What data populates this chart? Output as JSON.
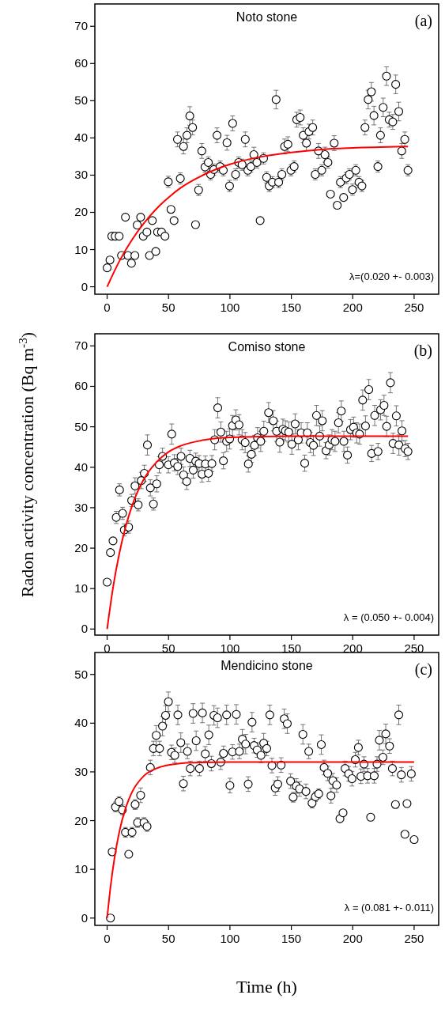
{
  "chart_data": [
    {
      "type": "scatter",
      "title": "Noto stone",
      "annotations": [
        "(a)",
        "λ=(0.020 +- 0.003)"
      ],
      "xlim": [
        -10,
        270
      ],
      "ylim": [
        -2,
        76
      ],
      "xticks": [
        0,
        50,
        100,
        150,
        200,
        250
      ],
      "yticks": [
        0,
        10,
        20,
        30,
        40,
        50,
        60,
        70
      ],
      "series": [
        {
          "marker": "circle",
          "color": "#000000",
          "x": [
            0,
            2.3,
            3.8,
            6.6,
            9.8,
            11.7,
            14.9,
            17,
            19.8,
            22.6,
            24.5,
            27.3,
            29.4,
            32.4,
            34.5,
            36.8,
            39.6,
            41.1,
            44.3,
            47.1,
            49.8,
            52,
            54.5,
            57.3,
            59.6,
            62.2,
            65,
            67.3,
            69.6,
            72,
            74.5,
            77.1,
            79.7,
            82.4,
            84.3,
            86.9,
            89.5,
            92,
            94.6,
            97.6,
            99.7,
            102.2,
            104.6,
            107.1,
            109.9,
            112.5,
            114.6,
            117.1,
            119.5,
            122,
            124.6,
            127.4,
            129.9,
            132,
            134.6,
            137.6,
            139.7,
            142.3,
            144.5,
            147.2,
            149.7,
            152.3,
            154.4,
            157.2,
            159.7,
            162.3,
            164.4,
            167.4,
            169.5,
            172.1,
            174.8,
            177.4,
            179.8,
            181.9,
            184.9,
            187.4,
            190,
            192.6,
            194.7,
            197.3,
            199.8,
            202.5,
            205.1,
            207.5,
            210,
            212.6,
            215.2,
            217.3,
            220.5,
            222.6,
            224.8,
            227.5,
            229.7,
            232.6,
            235,
            237.5,
            239.9,
            242.4,
            245
          ],
          "values": [
            5.1,
            7.2,
            13.6,
            13.6,
            13.6,
            8.4,
            18.7,
            8.4,
            6.3,
            8.4,
            16.6,
            18.7,
            13.6,
            14.7,
            8.4,
            17.8,
            9.5,
            14.7,
            14.7,
            13.6,
            28.2,
            20.8,
            17.8,
            39.6,
            29.1,
            37.7,
            40.7,
            45.9,
            42.8,
            16.7,
            26,
            36.5,
            32.2,
            33.4,
            30.2,
            31.5,
            40.7,
            32.3,
            31.3,
            38.7,
            27.1,
            43.9,
            30.2,
            33.4,
            32.8,
            39.6,
            31.3,
            32.3,
            35.5,
            33.4,
            17.8,
            34.5,
            29.4,
            27.1,
            28.1,
            50.3,
            28.1,
            30.2,
            37.7,
            38.3,
            31.3,
            32.3,
            44.9,
            45.5,
            40.7,
            38.6,
            41.7,
            42.8,
            30.2,
            36.5,
            31.3,
            35.5,
            33.4,
            24.9,
            38.6,
            21.9,
            28.1,
            24,
            29.2,
            30.2,
            26.1,
            31.3,
            28.1,
            27.1,
            42.8,
            50.3,
            52.4,
            46,
            32.3,
            40.7,
            48.2,
            56.6,
            44.9,
            44.3,
            54.4,
            47.1,
            36.5,
            39.6,
            31.3
          ],
          "errors": [
            null,
            null,
            null,
            null,
            null,
            null,
            null,
            null,
            null,
            null,
            null,
            null,
            null,
            null,
            null,
            null,
            null,
            null,
            null,
            null,
            1.5,
            null,
            null,
            2,
            1.5,
            2,
            2,
            2.5,
            2,
            null,
            1.5,
            2,
            1.5,
            1.5,
            1.5,
            1.5,
            2,
            1.5,
            1.5,
            2,
            1.5,
            2,
            1.5,
            1.5,
            1.5,
            2,
            1.5,
            1.5,
            2,
            1.5,
            null,
            1.5,
            1.5,
            1.5,
            1.5,
            2.5,
            1.5,
            1.5,
            2,
            2,
            1.5,
            1.5,
            2,
            2,
            2,
            2,
            2,
            2,
            1.5,
            2,
            1.5,
            2,
            1.5,
            null,
            2,
            null,
            1.5,
            null,
            1.5,
            1.5,
            1.5,
            1.5,
            1.5,
            1.5,
            2,
            2.5,
            2.5,
            2.5,
            1.5,
            2,
            2.5,
            2.5,
            2,
            2,
            2.5,
            2.5,
            2,
            2,
            1.5
          ]
        },
        {
          "type": "line",
          "color": "#ff0000",
          "x": [
            0,
            10,
            20,
            30,
            40,
            50,
            60,
            80,
            100,
            125,
            150,
            175,
            200,
            245
          ],
          "values": [
            0,
            6.9,
            12.5,
            17.1,
            20.9,
            24,
            26.6,
            30.3,
            32.9,
            34.9,
            36.1,
            36.9,
            37.3,
            37.7
          ]
        }
      ]
    },
    {
      "type": "scatter",
      "title": "Comiso stone",
      "ylabel": "Radon activity concentration (Bq m$^{-3}$)",
      "annotations": [
        "(b)",
        "λ = (0.050 +- 0.004)"
      ],
      "xlim": [
        -10,
        270
      ],
      "ylim": [
        -1.5,
        73
      ],
      "xticks": [
        0,
        50,
        100,
        150,
        200,
        250
      ],
      "yticks": [
        0,
        10,
        20,
        30,
        40,
        50,
        60,
        70
      ],
      "series": [
        {
          "marker": "circle",
          "color": "#000000",
          "x": [
            0,
            2.7,
            4.8,
            7.4,
            10.1,
            12.6,
            14,
            17.5,
            20,
            22.7,
            25.3,
            27.8,
            30.3,
            32.8,
            35.2,
            37.7,
            40.4,
            42.5,
            45.1,
            49.9,
            52.6,
            54.7,
            57.5,
            60.2,
            62.3,
            64.8,
            67.4,
            70.1,
            72.2,
            74.9,
            77.3,
            80,
            82.5,
            85.3,
            87.6,
            90.1,
            92.6,
            94.7,
            97.3,
            99.8,
            102.1,
            104.8,
            107.4,
            109.9,
            112.4,
            115,
            117.5,
            120,
            122.5,
            125.1,
            127.6,
            131.5,
            135.3,
            138,
            140.6,
            143.1,
            145.2,
            147.9,
            150.4,
            153.1,
            155.7,
            158,
            160.9,
            163,
            165.5,
            168,
            170.5,
            173.1,
            175.2,
            178.3,
            180.8,
            183.1,
            185.6,
            188.4,
            190.7,
            192.8,
            195.7,
            198.2,
            200.7,
            203.2,
            205.6,
            208.1,
            210.4,
            213.1,
            215.4,
            217.9,
            220.6,
            222.7,
            225.5,
            227.6,
            230.7,
            232.8,
            235.5,
            237.6,
            240.1,
            242.7,
            245
          ],
          "values": [
            11.6,
            18.9,
            21.8,
            27.6,
            34.4,
            28.6,
            24.5,
            25.2,
            31.8,
            35.4,
            30.7,
            36.7,
            38.5,
            45.5,
            34.9,
            30.9,
            35.9,
            40.6,
            42.7,
            40.6,
            48.2,
            41.1,
            40.2,
            42.7,
            38.1,
            36.5,
            42.2,
            39.3,
            41.5,
            40.9,
            38.3,
            40.8,
            38.5,
            40.9,
            46.8,
            54.7,
            48.7,
            41.6,
            46.4,
            47,
            50.3,
            51.7,
            50.5,
            46.8,
            46.1,
            40.8,
            43.2,
            45.4,
            47.3,
            46.4,
            48.9,
            53.5,
            51.5,
            48.9,
            46.2,
            49.4,
            49,
            48.7,
            45.7,
            50.7,
            46.8,
            48.5,
            41,
            48.5,
            46.1,
            45.4,
            52.8,
            47.7,
            51.5,
            44.1,
            45.5,
            46.8,
            46.4,
            51,
            53.9,
            46.4,
            43,
            49.3,
            49.9,
            48.5,
            48.2,
            56.6,
            50.2,
            59.2,
            43.4,
            52.8,
            43.9,
            54.2,
            55.3,
            50.1,
            60.9,
            45.9,
            52.7,
            45.5,
            49,
            44.6,
            43.9
          ],
          "errors": [
            null,
            null,
            null,
            1.5,
            1.5,
            1.5,
            1.5,
            1.5,
            1.5,
            2,
            1.5,
            2,
            2,
            2.5,
            2,
            1.5,
            2,
            2,
            2,
            2,
            2.5,
            2,
            2,
            2,
            2,
            2,
            2,
            2,
            2,
            2,
            2,
            2,
            2,
            2,
            2.5,
            2.5,
            2.5,
            2,
            2.5,
            2.5,
            2.5,
            2.5,
            2.5,
            2.5,
            2.5,
            2,
            2,
            2.5,
            2.5,
            2.5,
            2.5,
            2.5,
            2.5,
            2.5,
            2.5,
            2.5,
            2.5,
            2.5,
            2.5,
            2.5,
            2.5,
            2.5,
            2,
            2.5,
            2.5,
            2.5,
            2.5,
            2.5,
            2.5,
            2,
            2.5,
            2.5,
            2.5,
            2.5,
            2.5,
            2.5,
            2,
            2.5,
            2.5,
            2.5,
            2.5,
            2.5,
            2.5,
            2.5,
            2,
            2.5,
            2,
            2.5,
            2.5,
            2.5,
            2.5,
            2.5,
            2.5,
            2.5,
            2.5,
            2,
            2
          ]
        },
        {
          "type": "line",
          "color": "#ff0000",
          "x": [
            0,
            5,
            10,
            15,
            20,
            30,
            40,
            50,
            60,
            80,
            100,
            150,
            245
          ],
          "values": [
            0,
            10.6,
            18.8,
            25.2,
            30.2,
            37.1,
            41.2,
            43.8,
            45.3,
            46.8,
            47.4,
            47.7,
            47.7
          ]
        }
      ]
    },
    {
      "type": "scatter",
      "title": "Mendicino stone",
      "xlabel": "Time (h)",
      "annotations": [
        "(c)",
        "λ = (0.081 +- 0.011)"
      ],
      "xlim": [
        -10,
        270
      ],
      "ylim": [
        -1.5,
        54.5
      ],
      "xticks": [
        0,
        50,
        100,
        150,
        200,
        250
      ],
      "yticks": [
        0,
        10,
        20,
        30,
        40,
        50
      ],
      "series": [
        {
          "marker": "circle",
          "color": "#000000",
          "x": [
            2.7,
            4.1,
            6.8,
            9.7,
            12.4,
            14.9,
            17.6,
            20.3,
            22.8,
            24.8,
            27.3,
            30,
            32.5,
            35.2,
            37.7,
            40,
            42.7,
            45.1,
            47.6,
            49.9,
            52.4,
            55.1,
            57.6,
            60,
            62.1,
            65.4,
            67.7,
            70,
            72.5,
            75.2,
            77.6,
            79.9,
            82.8,
            84.9,
            87,
            89.9,
            92.5,
            94.8,
            97.3,
            100,
            102.1,
            105.2,
            107.7,
            110.1,
            112.8,
            114.9,
            118,
            119.7,
            122.2,
            125.3,
            127.5,
            130,
            132.5,
            134.2,
            136.9,
            139,
            141.7,
            144.2,
            146.7,
            149.4,
            151.5,
            154,
            156.7,
            159.4,
            161.9,
            164.2,
            166.9,
            169.6,
            172.3,
            174.4,
            176.7,
            179.6,
            182.3,
            183.8,
            186.9,
            189.6,
            192.1,
            193.8,
            196.7,
            199.4,
            202.1,
            204.6,
            206.7,
            209.2,
            212.1,
            214.6,
            217.5,
            219.8,
            221.7,
            224.6,
            226.9,
            230,
            232.3,
            234.8,
            237.5,
            239.6,
            242.5,
            244.2,
            247.7,
            250
          ],
          "values": [
            0,
            13.6,
            22.8,
            23.9,
            22.2,
            17.6,
            13.1,
            17.6,
            23.3,
            19.6,
            25.2,
            19.6,
            18.8,
            30.9,
            34.8,
            37.5,
            34.8,
            39.4,
            41.6,
            44.4,
            34,
            33.4,
            41.7,
            36,
            27.6,
            34.2,
            30.7,
            42,
            36.4,
            30.7,
            42.1,
            33.7,
            37.6,
            31.7,
            41.6,
            41.1,
            32,
            33.8,
            41.7,
            27.2,
            34.1,
            41.8,
            34.2,
            36.7,
            35.7,
            27.5,
            40.2,
            35.4,
            34.5,
            33.4,
            35.9,
            34.8,
            41.7,
            31.3,
            26.7,
            27.5,
            31.4,
            40.9,
            39.9,
            28.1,
            24.8,
            27.1,
            26.5,
            37.7,
            26,
            34.2,
            23.6,
            24.9,
            25.5,
            35.6,
            30.9,
            29.7,
            25.1,
            28.2,
            27.3,
            20.4,
            21.6,
            30.7,
            29.6,
            28.6,
            32.5,
            35,
            29.1,
            31.6,
            29.2,
            20.7,
            29.2,
            31.6,
            36.5,
            33,
            37.8,
            35.3,
            30.7,
            23.3,
            41.7,
            29.4,
            17.2,
            23.5,
            29.6,
            16.1
          ],
          "errors": [
            null,
            null,
            1,
            1,
            1,
            1,
            null,
            1,
            1,
            1,
            1.5,
            1,
            1,
            1.5,
            1.5,
            2,
            1.5,
            2,
            2,
            2,
            1.5,
            1.5,
            2,
            2,
            1.5,
            1.5,
            1.5,
            2,
            2,
            1.5,
            2,
            1.5,
            2,
            1.5,
            2,
            2,
            1.5,
            1.5,
            2,
            1.5,
            1.5,
            2,
            1.5,
            2,
            2,
            1.5,
            2,
            1.5,
            1.5,
            1.5,
            2,
            1.5,
            2,
            1.5,
            1.5,
            1.5,
            1.5,
            2,
            2,
            1.5,
            1,
            1.5,
            1.5,
            2,
            1.5,
            1.5,
            1,
            1,
            1,
            2,
            1.5,
            1.5,
            1.5,
            1.5,
            1.5,
            null,
            null,
            1.5,
            1.5,
            1.5,
            1.5,
            1.5,
            1.5,
            1.5,
            1.5,
            null,
            1.5,
            1.5,
            2,
            1.5,
            2,
            1.5,
            1.5,
            null,
            2,
            1.5,
            null,
            null,
            1.5,
            null
          ]
        },
        {
          "type": "line",
          "color": "#ff0000",
          "x": [
            0,
            3,
            6,
            10,
            15,
            20,
            30,
            40,
            50,
            70,
            100,
            250
          ],
          "values": [
            0,
            6.9,
            12.3,
            17.8,
            22.5,
            25.7,
            29.2,
            30.7,
            31.4,
            31.9,
            32,
            32
          ]
        }
      ]
    }
  ]
}
